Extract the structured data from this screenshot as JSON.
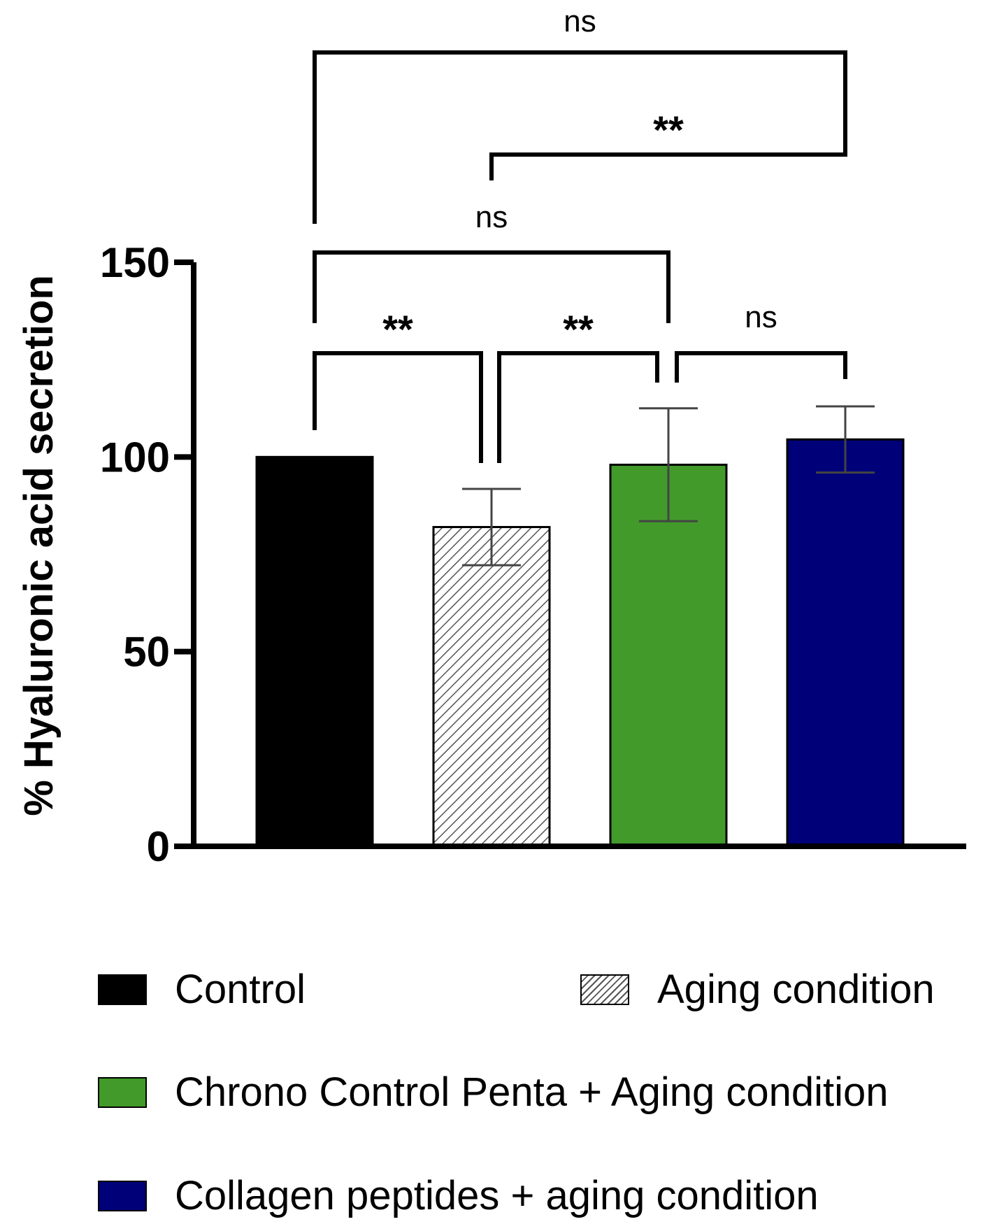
{
  "chart_data": {
    "type": "bar",
    "title": "",
    "xlabel": "",
    "ylabel": "% Hyaluronic acid secretion",
    "ylim": [
      0,
      150
    ],
    "yticks": [
      0,
      50,
      100,
      150
    ],
    "categories": [
      "Control",
      "Aging condition",
      "Chrono Control Penta + Aging condition",
      "Collagen peptides + aging condition"
    ],
    "values": [
      100,
      82,
      98,
      104.5
    ],
    "errors": [
      0,
      9.8,
      14.5,
      8.5
    ],
    "colors": [
      "#000000",
      "hatch",
      "#429a2a",
      "#000078"
    ],
    "significance": [
      {
        "from": 0,
        "to": 3,
        "label": "ns"
      },
      {
        "from": 1,
        "to": 3,
        "label": "**"
      },
      {
        "from": 0,
        "to": 2,
        "label": "ns"
      },
      {
        "from": 0,
        "to": 1,
        "label": "**"
      },
      {
        "from": 1,
        "to": 2,
        "label": "**"
      },
      {
        "from": 2,
        "to": 3,
        "label": "ns"
      }
    ],
    "legend": [
      {
        "label": "Control",
        "color": "#000000"
      },
      {
        "label": "Aging condition",
        "color": "hatch"
      },
      {
        "label": "Chrono Control Penta + Aging condition",
        "color": "#429a2a"
      },
      {
        "label": "Collagen peptides + aging condition",
        "color": "#000078"
      }
    ]
  }
}
